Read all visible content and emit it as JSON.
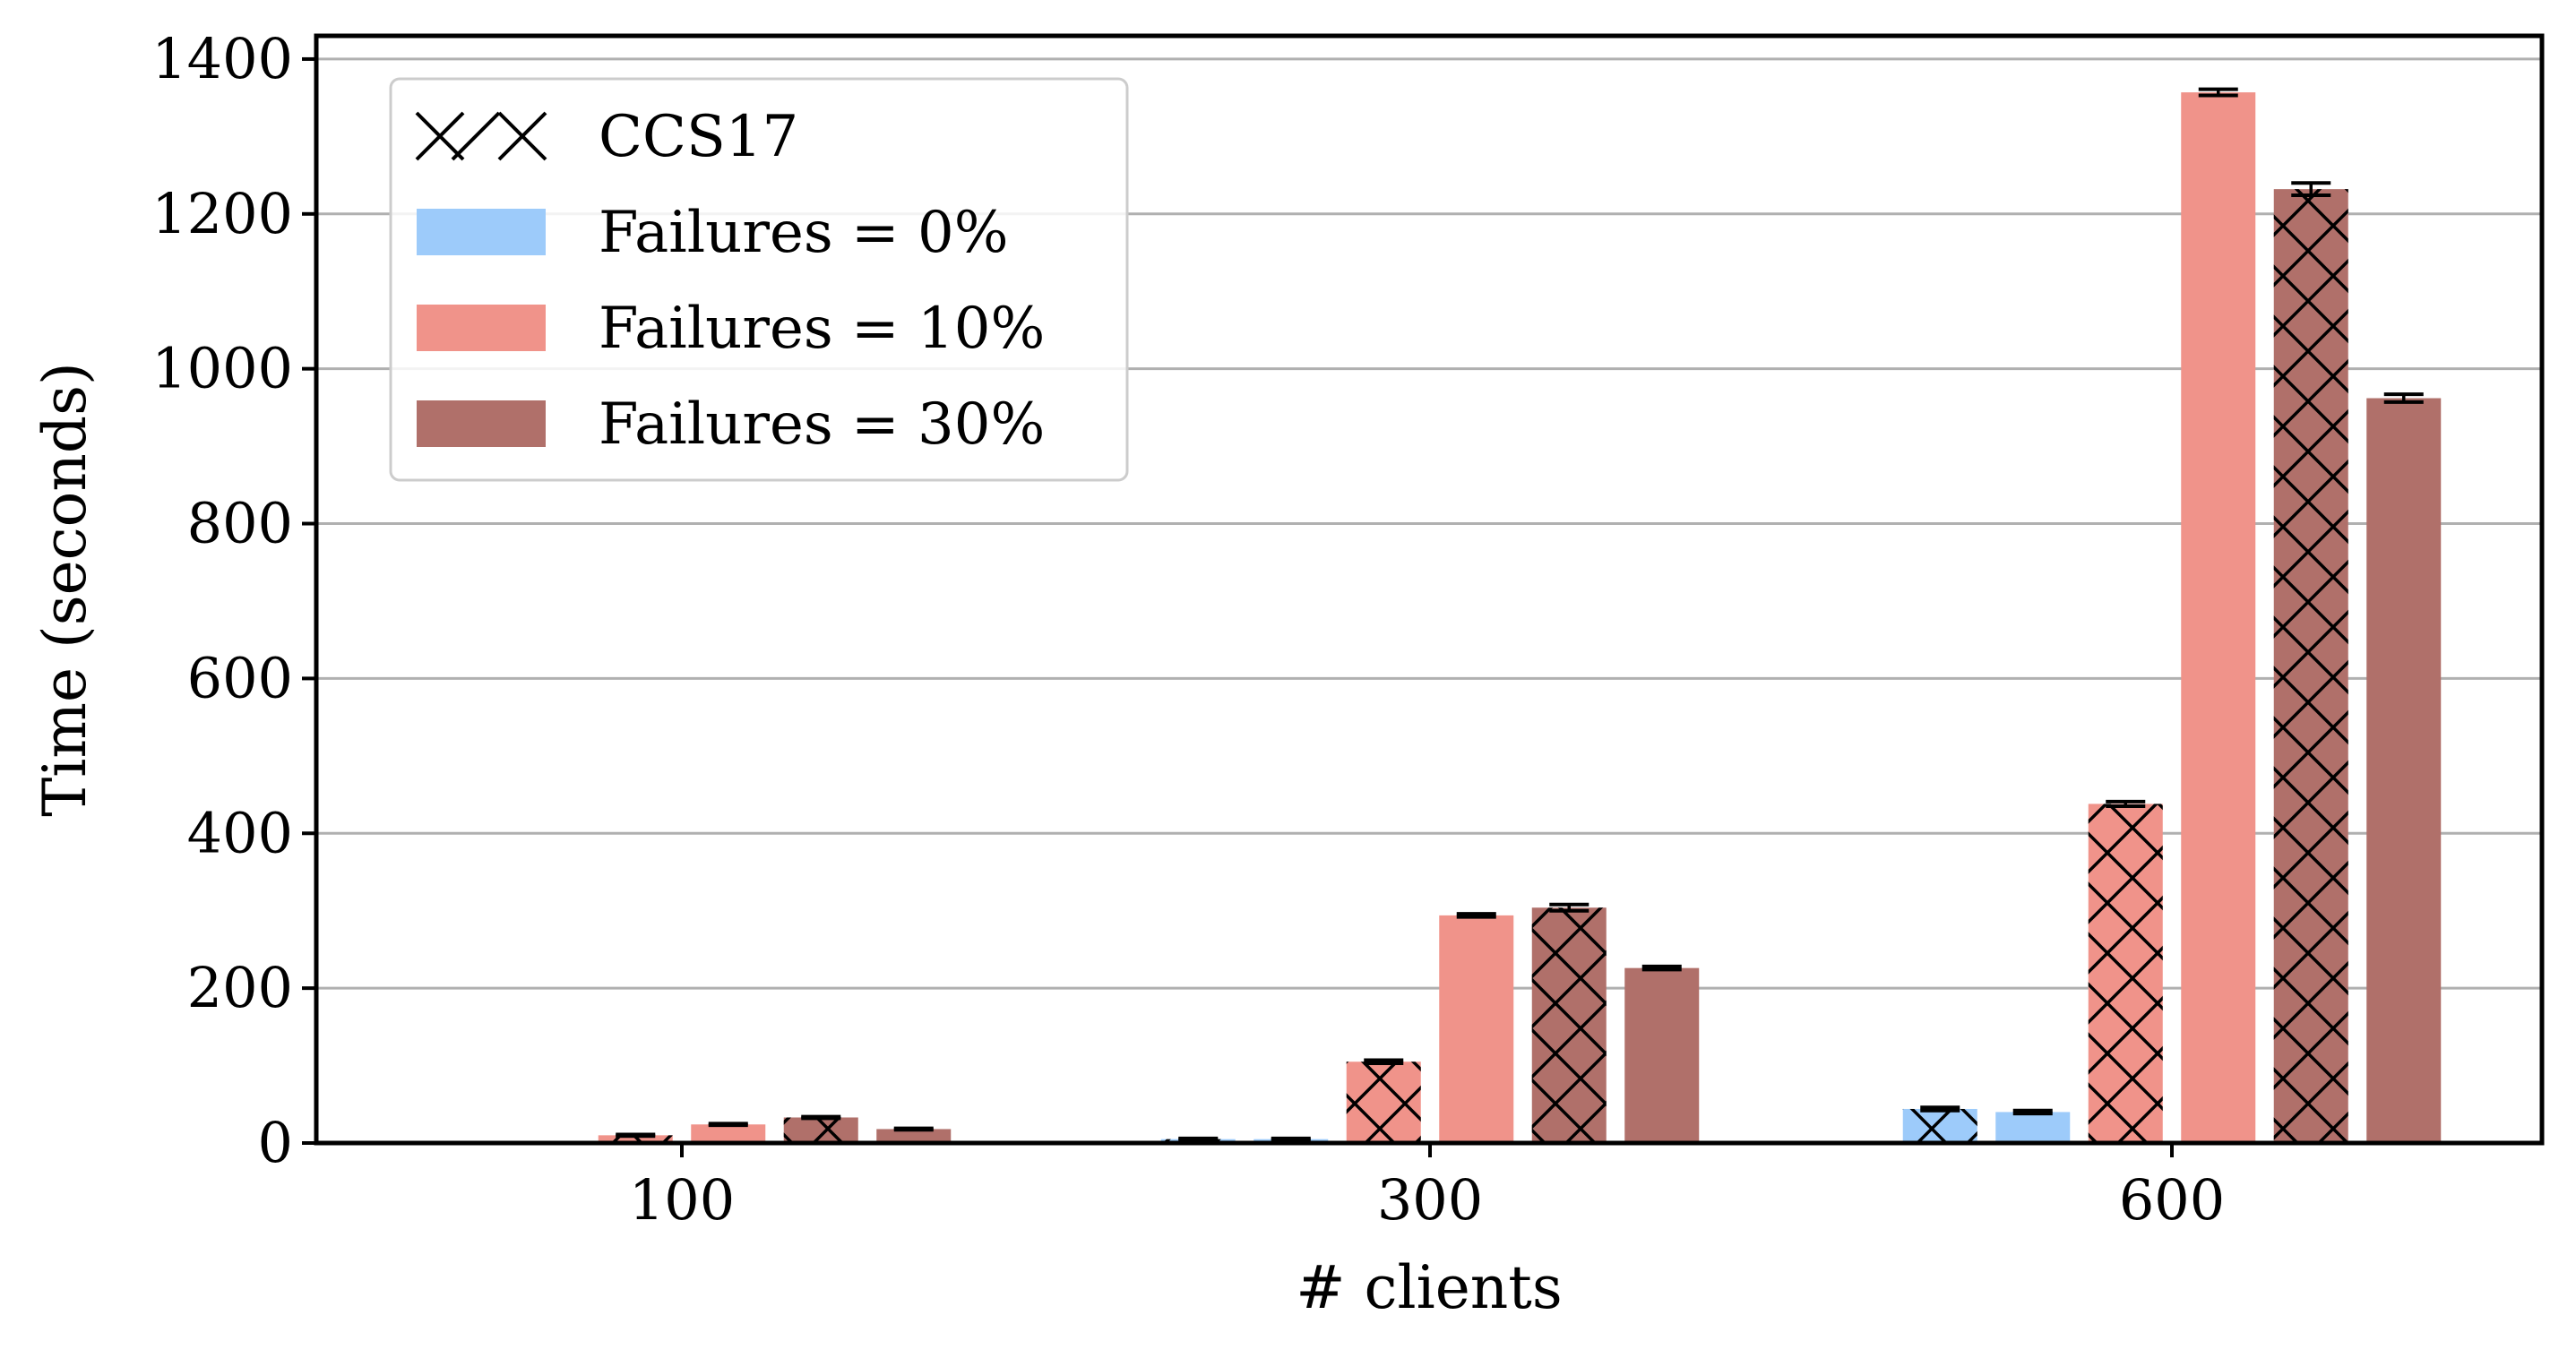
{
  "chart_data": {
    "type": "bar",
    "categories": [
      "100",
      "300",
      "600"
    ],
    "xlabel": "# clients",
    "ylabel": "Time (seconds)",
    "ylim": [
      0,
      1430
    ],
    "yticks": [
      0,
      200,
      400,
      600,
      800,
      1000,
      1200,
      1400
    ],
    "grid": "horizontal",
    "legend_position": "top-left",
    "legend": {
      "hatch_entry": "CCS17",
      "entries": [
        "Failures = 0%",
        "Failures = 10%",
        "Failures = 30%"
      ]
    },
    "colors": {
      "Failures = 0%": "#9dcbfa",
      "Failures = 10%": "#f0938a",
      "Failures = 30%": "#b0706a"
    },
    "bars": [
      {
        "category": "100",
        "series": "Failures = 0%",
        "ccs17": true,
        "value": 0,
        "error": 0
      },
      {
        "category": "100",
        "series": "Failures = 0%",
        "ccs17": false,
        "value": 0,
        "error": 0
      },
      {
        "category": "100",
        "series": "Failures = 10%",
        "ccs17": true,
        "value": 10,
        "error": 1
      },
      {
        "category": "100",
        "series": "Failures = 10%",
        "ccs17": false,
        "value": 24,
        "error": 1
      },
      {
        "category": "100",
        "series": "Failures = 30%",
        "ccs17": true,
        "value": 33,
        "error": 1
      },
      {
        "category": "100",
        "series": "Failures = 30%",
        "ccs17": false,
        "value": 18,
        "error": 1
      },
      {
        "category": "300",
        "series": "Failures = 0%",
        "ccs17": true,
        "value": 5,
        "error": 1
      },
      {
        "category": "300",
        "series": "Failures = 0%",
        "ccs17": false,
        "value": 5,
        "error": 1
      },
      {
        "category": "300",
        "series": "Failures = 10%",
        "ccs17": true,
        "value": 105,
        "error": 2
      },
      {
        "category": "300",
        "series": "Failures = 10%",
        "ccs17": false,
        "value": 294,
        "error": 2
      },
      {
        "category": "300",
        "series": "Failures = 30%",
        "ccs17": true,
        "value": 304,
        "error": 4
      },
      {
        "category": "300",
        "series": "Failures = 30%",
        "ccs17": false,
        "value": 226,
        "error": 2
      },
      {
        "category": "600",
        "series": "Failures = 0%",
        "ccs17": true,
        "value": 44,
        "error": 2
      },
      {
        "category": "600",
        "series": "Failures = 0%",
        "ccs17": false,
        "value": 40,
        "error": 2
      },
      {
        "category": "600",
        "series": "Failures = 10%",
        "ccs17": true,
        "value": 438,
        "error": 3
      },
      {
        "category": "600",
        "series": "Failures = 10%",
        "ccs17": false,
        "value": 1357,
        "error": 4
      },
      {
        "category": "600",
        "series": "Failures = 30%",
        "ccs17": true,
        "value": 1232,
        "error": 8
      },
      {
        "category": "600",
        "series": "Failures = 30%",
        "ccs17": false,
        "value": 962,
        "error": 5
      }
    ]
  }
}
